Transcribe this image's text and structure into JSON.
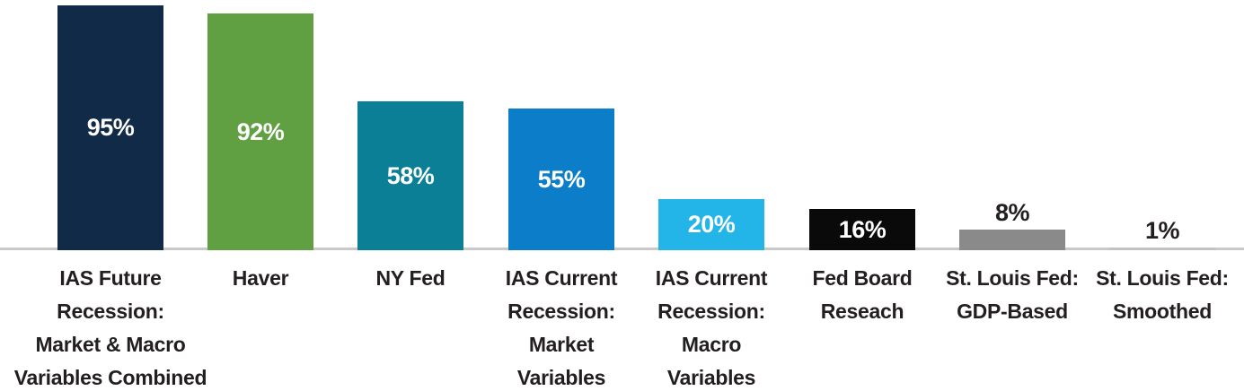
{
  "chart_data": {
    "type": "bar",
    "title": "",
    "xlabel": "",
    "ylabel": "",
    "ylim": [
      0,
      100
    ],
    "grid": false,
    "legend": false,
    "value_labels_shown": true,
    "categories": [
      "IAS Future\nRecession:\nMarket & Macro\nVariables Combined",
      "Haver",
      "NY Fed",
      "IAS Current\nRecession:\nMarket\nVariables",
      "IAS Current\nRecession:\nMacro\nVariables",
      "Fed Board\nReseach",
      "St. Louis Fed:\nGDP-Based",
      "St. Louis Fed:\nSmoothed"
    ],
    "values": [
      95,
      92,
      58,
      55,
      20,
      16,
      8,
      1
    ],
    "value_labels": [
      "95%",
      "92%",
      "58%",
      "55%",
      "20%",
      "16%",
      "8%",
      "1%"
    ],
    "bar_colors": [
      "#102A47",
      "#60A043",
      "#0A7F96",
      "#0C7DC8",
      "#23B4E8",
      "#0A0A0A",
      "#8A8A8A",
      "#C2C2C2"
    ],
    "value_label_placement": [
      "inside",
      "inside",
      "inside",
      "inside",
      "inside",
      "inside",
      "above",
      "above"
    ],
    "value_label_color_inside": "#FFFFFF",
    "value_label_color_outside": "#231F20",
    "category_label_color": "#231F20",
    "axis_line_color": "#C9C9C9",
    "background_color": "#FFFFFF"
  }
}
